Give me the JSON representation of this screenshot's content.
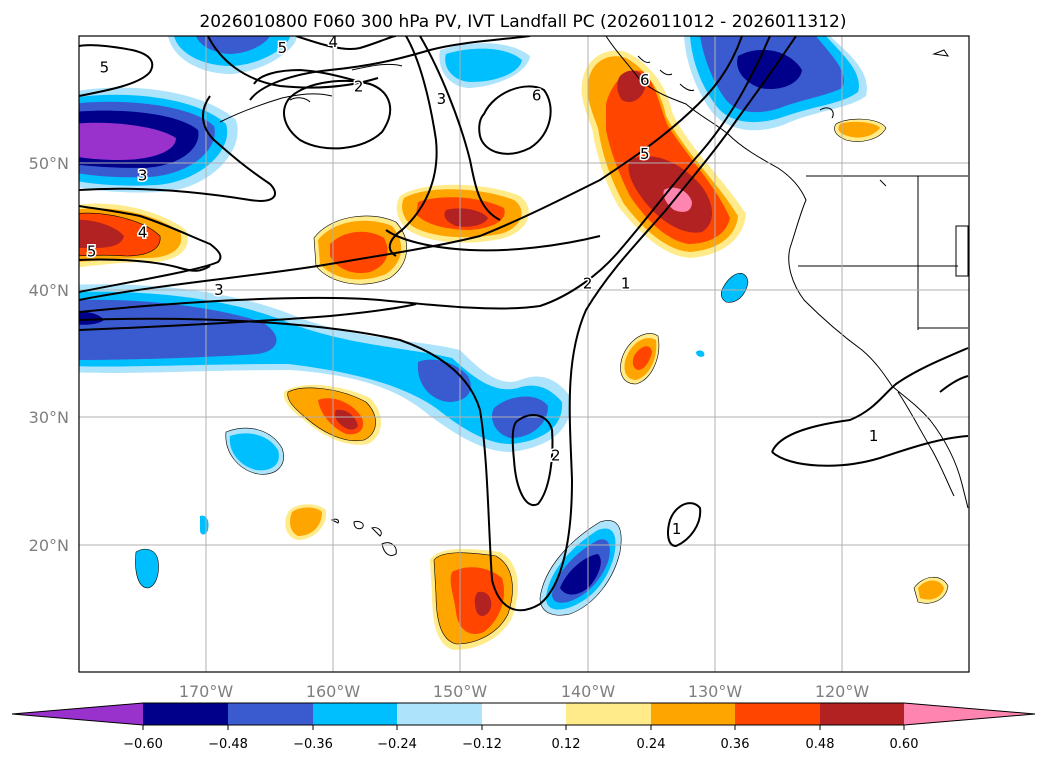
{
  "title": "2026010800 F060 300 hPa PV, IVT Landfall PC (2026011012 - 2026011312)",
  "map": {
    "lon_range": [
      -180,
      -110
    ],
    "lat_range": [
      10,
      60
    ],
    "lon_ticks": [
      {
        "v": -170,
        "label": "170°W"
      },
      {
        "v": -160,
        "label": "160°W"
      },
      {
        "v": -150,
        "label": "150°W"
      },
      {
        "v": -140,
        "label": "140°W"
      },
      {
        "v": -130,
        "label": "130°W"
      },
      {
        "v": -120,
        "label": "120°W"
      }
    ],
    "lat_ticks": [
      {
        "v": 20,
        "label": "20°N"
      },
      {
        "v": 30,
        "label": "30°N"
      },
      {
        "v": 40,
        "label": "40°N"
      },
      {
        "v": 50,
        "label": "50°N"
      }
    ],
    "grid": true
  },
  "colorbar": {
    "levels": [
      "−0.60",
      "−0.48",
      "−0.36",
      "−0.24",
      "−0.12",
      "0.12",
      "0.24",
      "0.36",
      "0.48",
      "0.60"
    ],
    "colors": [
      "#9932CC",
      "#00008B",
      "#3A5BCF",
      "#00BFFF",
      "#ADE3FB",
      "#FFFFFF",
      "#FFEB8A",
      "#FFA500",
      "#FF4500",
      "#B22222",
      "#FF85B0"
    ],
    "extend": "both"
  },
  "contour_labels": [
    {
      "text": "5",
      "lon": -178.0,
      "lat": 57.5
    },
    {
      "text": "5",
      "lon": -164.0,
      "lat": 59.0
    },
    {
      "text": "4",
      "lon": -160.0,
      "lat": 59.5
    },
    {
      "text": "2",
      "lon": -158.0,
      "lat": 56.0
    },
    {
      "text": "3",
      "lon": -151.5,
      "lat": 55.0
    },
    {
      "text": "6",
      "lon": -144.0,
      "lat": 55.3
    },
    {
      "text": "6",
      "lon": -135.5,
      "lat": 56.5
    },
    {
      "text": "5",
      "lon": -135.5,
      "lat": 50.7
    },
    {
      "text": "3",
      "lon": -175.0,
      "lat": 49.0
    },
    {
      "text": "4",
      "lon": -175.0,
      "lat": 44.5
    },
    {
      "text": "5",
      "lon": -179.0,
      "lat": 43.0
    },
    {
      "text": "3",
      "lon": -169.0,
      "lat": 40.0
    },
    {
      "text": "2",
      "lon": -140.0,
      "lat": 40.5
    },
    {
      "text": "1",
      "lon": -137.0,
      "lat": 40.5
    },
    {
      "text": "2",
      "lon": -142.5,
      "lat": 27.0
    },
    {
      "text": "1",
      "lon": -133.0,
      "lat": 21.2
    },
    {
      "text": "1",
      "lon": -117.5,
      "lat": 28.5
    }
  ]
}
